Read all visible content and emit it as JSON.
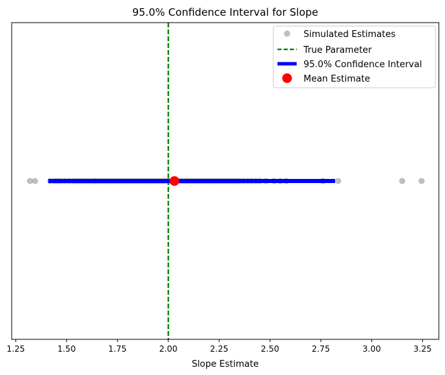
{
  "chart_data": {
    "type": "scatter",
    "title": "95.0% Confidence Interval for Slope",
    "xlabel": "Slope Estimate",
    "ylabel": "",
    "xlim": [
      1.23,
      3.33
    ],
    "ylim": [
      -1,
      1
    ],
    "xticks": [
      1.25,
      1.5,
      1.75,
      2.0,
      2.25,
      2.5,
      2.75,
      3.0,
      3.25
    ],
    "xtick_labels": [
      "1.25",
      "1.50",
      "1.75",
      "2.00",
      "2.25",
      "2.50",
      "2.75",
      "3.00",
      "3.25"
    ],
    "grid": false,
    "legend_position": "top-right",
    "series": [
      {
        "name": "Simulated Estimates",
        "kind": "scatter",
        "color": "#808080",
        "y": 0,
        "x": [
          1.32,
          1.345,
          1.42,
          1.44,
          1.455,
          1.47,
          1.49,
          1.51,
          1.53,
          1.545,
          1.56,
          1.575,
          1.59,
          1.605,
          1.62,
          1.635,
          1.645,
          1.66,
          1.675,
          1.69,
          1.705,
          1.72,
          1.735,
          1.75,
          1.765,
          1.78,
          1.795,
          1.81,
          1.825,
          1.84,
          1.855,
          1.87,
          1.885,
          1.9,
          1.915,
          1.93,
          1.945,
          1.96,
          1.975,
          1.99,
          2.005,
          2.02,
          2.035,
          2.05,
          2.065,
          2.08,
          2.095,
          2.11,
          2.125,
          2.14,
          2.155,
          2.17,
          2.185,
          2.2,
          2.215,
          2.23,
          2.245,
          2.26,
          2.275,
          2.29,
          2.305,
          2.32,
          2.335,
          2.35,
          2.37,
          2.39,
          2.41,
          2.43,
          2.45,
          2.48,
          2.52,
          2.55,
          2.58,
          2.76,
          2.835,
          3.15,
          3.245
        ]
      },
      {
        "name": "True Parameter",
        "kind": "vline",
        "color": "#008000",
        "x": 2.0
      },
      {
        "name": "95.0% Confidence Interval",
        "kind": "interval",
        "color": "#0000ff",
        "lower": 1.41,
        "upper": 2.82,
        "y": 0
      },
      {
        "name": "Mean Estimate",
        "kind": "point",
        "color": "#ff0000",
        "x": 2.03,
        "y": 0
      }
    ]
  }
}
